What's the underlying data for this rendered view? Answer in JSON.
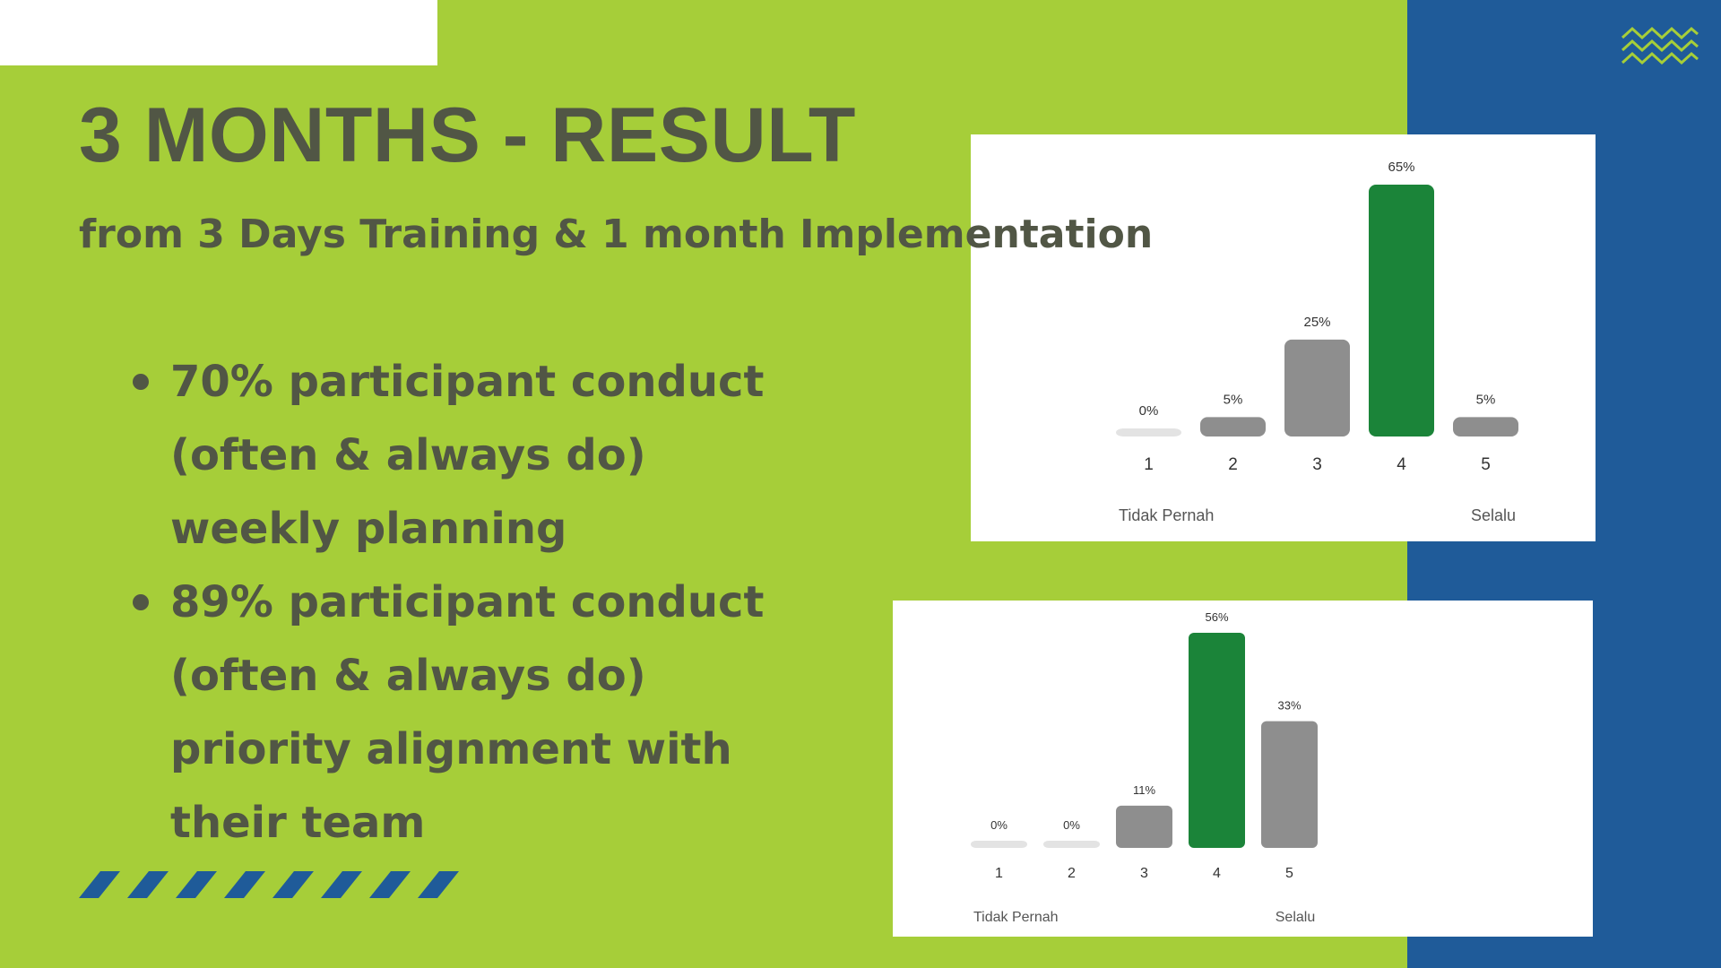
{
  "slide": {
    "title": "3 MONTHS - RESULT",
    "subtitle": "from 3 Days Training & 1 month Implementation",
    "bullets": [
      "70% participant conduct (often & always do) weekly planning",
      "89% participant conduct (often & always do) priority alignment with their team"
    ]
  },
  "colors": {
    "background": "#a6ce39",
    "blue_panel": "#1f5b99",
    "text": "#515645",
    "highlight_bar": "#1b8439",
    "normal_bar": "#8e8e8e",
    "zero_bar": "#e3e3e3",
    "accent_line": "#a6ce39"
  },
  "icons": [
    "zigzag-icon"
  ],
  "chart_data": [
    {
      "type": "bar",
      "categories": [
        "1",
        "2",
        "3",
        "4",
        "5"
      ],
      "values": [
        0,
        5,
        25,
        65,
        5
      ],
      "data_labels": [
        "0%",
        "5%",
        "25%",
        "65%",
        "5%"
      ],
      "highlight_index": 3,
      "scale_labels": {
        "left": "Tidak Pernah",
        "right": "Selalu"
      },
      "ylim": [
        0,
        65
      ]
    },
    {
      "type": "bar",
      "categories": [
        "1",
        "2",
        "3",
        "4",
        "5"
      ],
      "values": [
        0,
        0,
        11,
        56,
        33
      ],
      "data_labels": [
        "0%",
        "0%",
        "11%",
        "56%",
        "33%"
      ],
      "highlight_index": 3,
      "scale_labels": {
        "left": "Tidak Pernah",
        "right": "Selalu"
      },
      "ylim": [
        0,
        56
      ]
    }
  ]
}
